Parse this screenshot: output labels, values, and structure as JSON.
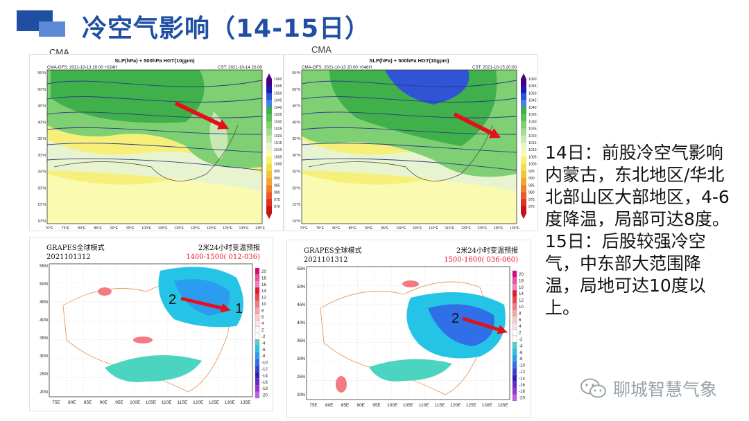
{
  "title": "冷空气影响（14-15日）",
  "source_label_left": "CMA",
  "source_label_right": "CMA",
  "slp_maps": [
    {
      "name": "slp-map-24h",
      "heading": "SLP(hPa) + 500hPa HGT(10gpm)",
      "model": "CMA-GFS: 2021-10-13 20:00 +024H",
      "valid": "CST: 2021-10-14 20:00",
      "lon_ticks": [
        "70°E",
        "75°E",
        "80°E",
        "85°E",
        "90°E",
        "95°E",
        "100°E",
        "105°E",
        "110°E",
        "115°E",
        "120°E",
        "125°E",
        "130°E",
        "135°E"
      ],
      "lat_ticks": [
        "55°N",
        "50°N",
        "45°N",
        "40°N",
        "35°N",
        "30°N",
        "25°N",
        "20°N",
        "15°N",
        "10°N"
      ],
      "scale_ticks": [
        "1060",
        "1055",
        "1050",
        "1045",
        "1040",
        "1035",
        "1030",
        "1025",
        "1020",
        "1015",
        "1010",
        "1005",
        "1000",
        "995",
        "990",
        "985",
        "980",
        "975",
        "970"
      ]
    },
    {
      "name": "slp-map-48h",
      "heading": "SLP(hPa) + 500hPa HGT(10gpm)",
      "model": "CMA-GFS: 2021-10-13 20:00 +048H",
      "valid": "CST: 2021-10-15 20:00",
      "lon_ticks": [
        "70°E",
        "75°E",
        "80°E",
        "85°E",
        "90°E",
        "95°E",
        "100°E",
        "105°E",
        "110°E",
        "115°E",
        "120°E",
        "125°E",
        "130°E",
        "135°E"
      ],
      "lat_ticks": [
        "55°N",
        "50°N",
        "45°N",
        "40°N",
        "35°N",
        "30°N",
        "25°N",
        "20°N",
        "15°N",
        "10°N"
      ],
      "scale_ticks": [
        "1060",
        "1055",
        "1050",
        "1045",
        "1040",
        "1035",
        "1030",
        "1025",
        "1020",
        "1015",
        "1010",
        "1005",
        "1000",
        "995",
        "990",
        "985",
        "980",
        "975",
        "970"
      ]
    }
  ],
  "temp_maps": [
    {
      "name": "temp-change-map-1",
      "model": "GRAPES全球模式",
      "date": "2021101312",
      "product": "2米24小时变温预报",
      "window": "1400-1500( 012-036)",
      "labels": [
        "2",
        "1"
      ],
      "lon_ticks": [
        "75E",
        "80E",
        "85E",
        "90E",
        "95E",
        "100E",
        "105E",
        "110E",
        "115E",
        "120E",
        "125E",
        "130E",
        "135E"
      ],
      "lat_ticks": [
        "55N",
        "50N",
        "45N",
        "40N",
        "35N",
        "30N",
        "25N",
        "20N"
      ],
      "scale_ticks": [
        "20",
        "18",
        "16",
        "14",
        "12",
        "10",
        "8",
        "6",
        "4",
        "2",
        "-2",
        "-4",
        "-6",
        "-8",
        "-10",
        "-12",
        "-14",
        "-16",
        "-18",
        "-20"
      ]
    },
    {
      "name": "temp-change-map-2",
      "model": "GRAPES全球模式",
      "date": "2021101312",
      "product": "2米24小时变温预报",
      "window": "1500-1600( 036-060)",
      "labels": [
        "2"
      ],
      "lon_ticks": [
        "75E",
        "80E",
        "85E",
        "90E",
        "95E",
        "100E",
        "105E",
        "110E",
        "115E",
        "120E",
        "125E",
        "130E",
        "135E"
      ],
      "lat_ticks": [
        "55N",
        "50N",
        "45N",
        "40N",
        "35N",
        "30N",
        "25N",
        "20N"
      ],
      "scale_ticks": [
        "20",
        "18",
        "16",
        "14",
        "12",
        "10",
        "8",
        "6",
        "4",
        "2",
        "-2",
        "-4",
        "-6",
        "-8",
        "-10",
        "-12",
        "-14",
        "-16",
        "-18",
        "-20"
      ]
    }
  ],
  "slp_scale_colors": [
    "#4b0082",
    "#1a1ab8",
    "#2f55d6",
    "#3f86e6",
    "#3fb04a",
    "#5cbf5a",
    "#7fcf73",
    "#a5dc93",
    "#c8e8b4",
    "#e7f4cf",
    "#fafab0",
    "#f6f07a",
    "#f2e04a",
    "#f4c43a",
    "#f3a433",
    "#f0802b",
    "#ec5b25",
    "#e0301f",
    "#c41515"
  ],
  "temp_scale_colors": [
    "#e6007e",
    "#f04ca4",
    "#f57fc0",
    "#e8182a",
    "#f04550",
    "#f47a82",
    "#f7a5aa",
    "#fbcbcd",
    "#fde3e4",
    "#ffffff",
    "#ffffff",
    "#4bd4bf",
    "#25c4e6",
    "#2a9df0",
    "#2f6fe8",
    "#3342d6",
    "#2a22b8",
    "#6a28c8",
    "#9b30d8",
    "#c060e8"
  ],
  "description": [
    "14日：前股冷空气影响内蒙古，东北地区/华北北部山区大部地区，4-6度降温，局部可达8度。",
    "15日：后股较强冷空气，中东部大范围降温，局地可达10度以上。"
  ],
  "watermark": "聊城智慧气象"
}
